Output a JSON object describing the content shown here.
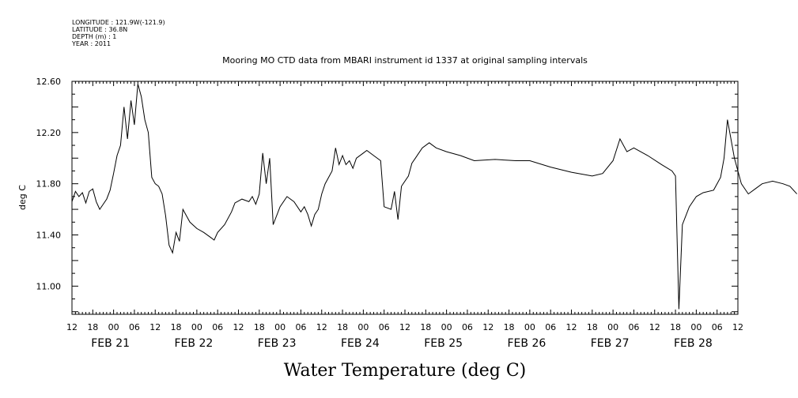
{
  "header": {
    "longitude": "LONGITUDE : 121.9W(-121.9)",
    "latitude": "LATITUDE : 36.8N",
    "depth": "DEPTH (m) : 1",
    "year": "YEAR : 2011"
  },
  "chart_data": {
    "type": "line",
    "title": "Mooring MO CTD data from MBARI instrument id 1337 at original sampling intervals",
    "ylabel": "deg C",
    "xlabel": "Water Temperature (deg C)",
    "ylim": [
      10.78,
      12.6
    ],
    "xlim_hours_note": "time axis in hours of Feb 2011",
    "y_ticks": [
      "12.60",
      "12.20",
      "11.80",
      "11.40",
      "11.00"
    ],
    "y_tick_values": [
      12.6,
      12.2,
      11.8,
      11.4,
      11.0
    ],
    "x_start": "2011-02-20T12:00",
    "x_end": "2011-02-28T12:00",
    "x_hour_labels": [
      "12",
      "18",
      "00",
      "06",
      "12",
      "18",
      "00",
      "06",
      "12",
      "18",
      "00",
      "06",
      "12",
      "18",
      "00",
      "06",
      "12",
      "18",
      "00",
      "06",
      "12",
      "18",
      "00",
      "06",
      "12",
      "18",
      "00",
      "06",
      "12",
      "18",
      "00",
      "06",
      "12"
    ],
    "day_labels": [
      "FEB 21",
      "FEB 22",
      "FEB 23",
      "FEB 24",
      "FEB 25",
      "FEB 26",
      "FEB 27",
      "FEB 28"
    ],
    "series": [
      {
        "points": [
          [
            "2011-02-20T12:00",
            11.66
          ],
          [
            "2011-02-20T13:00",
            11.74
          ],
          [
            "2011-02-20T14:00",
            11.7
          ],
          [
            "2011-02-20T15:00",
            11.73
          ],
          [
            "2011-02-20T16:00",
            11.65
          ],
          [
            "2011-02-20T17:00",
            11.74
          ],
          [
            "2011-02-20T18:00",
            11.76
          ],
          [
            "2011-02-20T19:00",
            11.66
          ],
          [
            "2011-02-20T20:00",
            11.6
          ],
          [
            "2011-02-20T21:00",
            11.64
          ],
          [
            "2011-02-20T22:00",
            11.68
          ],
          [
            "2011-02-20T23:00",
            11.75
          ],
          [
            "2011-02-21T00:00",
            11.88
          ],
          [
            "2011-02-21T01:00",
            12.02
          ],
          [
            "2011-02-21T02:00",
            12.1
          ],
          [
            "2011-02-21T03:00",
            12.4
          ],
          [
            "2011-02-21T04:00",
            12.15
          ],
          [
            "2011-02-21T05:00",
            12.45
          ],
          [
            "2011-02-21T06:00",
            12.26
          ],
          [
            "2011-02-21T07:00",
            12.58
          ],
          [
            "2011-02-21T08:00",
            12.48
          ],
          [
            "2011-02-21T09:00",
            12.3
          ],
          [
            "2011-02-21T10:00",
            12.2
          ],
          [
            "2011-02-21T11:00",
            11.85
          ],
          [
            "2011-02-21T12:00",
            11.8
          ],
          [
            "2011-02-21T13:00",
            11.78
          ],
          [
            "2011-02-21T14:00",
            11.72
          ],
          [
            "2011-02-21T15:00",
            11.55
          ],
          [
            "2011-02-21T16:00",
            11.32
          ],
          [
            "2011-02-21T17:00",
            11.26
          ],
          [
            "2011-02-21T18:00",
            11.42
          ],
          [
            "2011-02-21T19:00",
            11.35
          ],
          [
            "2011-02-21T20:00",
            11.6
          ],
          [
            "2011-02-21T21:00",
            11.55
          ],
          [
            "2011-02-21T22:00",
            11.5
          ],
          [
            "2011-02-22T00:00",
            11.45
          ],
          [
            "2011-02-22T02:00",
            11.42
          ],
          [
            "2011-02-22T04:00",
            11.38
          ],
          [
            "2011-02-22T05:00",
            11.36
          ],
          [
            "2011-02-22T06:00",
            11.42
          ],
          [
            "2011-02-22T08:00",
            11.48
          ],
          [
            "2011-02-22T10:00",
            11.58
          ],
          [
            "2011-02-22T11:00",
            11.65
          ],
          [
            "2011-02-22T13:00",
            11.68
          ],
          [
            "2011-02-22T15:00",
            11.66
          ],
          [
            "2011-02-22T16:00",
            11.7
          ],
          [
            "2011-02-22T17:00",
            11.64
          ],
          [
            "2011-02-22T18:00",
            11.72
          ],
          [
            "2011-02-22T19:00",
            12.04
          ],
          [
            "2011-02-22T20:00",
            11.8
          ],
          [
            "2011-02-22T21:00",
            12.0
          ],
          [
            "2011-02-22T22:00",
            11.48
          ],
          [
            "2011-02-23T00:00",
            11.62
          ],
          [
            "2011-02-23T02:00",
            11.7
          ],
          [
            "2011-02-23T04:00",
            11.66
          ],
          [
            "2011-02-23T06:00",
            11.58
          ],
          [
            "2011-02-23T07:00",
            11.62
          ],
          [
            "2011-02-23T08:00",
            11.56
          ],
          [
            "2011-02-23T09:00",
            11.47
          ],
          [
            "2011-02-23T10:00",
            11.56
          ],
          [
            "2011-02-23T11:00",
            11.6
          ],
          [
            "2011-02-23T12:00",
            11.72
          ],
          [
            "2011-02-23T13:00",
            11.8
          ],
          [
            "2011-02-23T14:00",
            11.85
          ],
          [
            "2011-02-23T15:00",
            11.9
          ],
          [
            "2011-02-23T16:00",
            12.08
          ],
          [
            "2011-02-23T17:00",
            11.95
          ],
          [
            "2011-02-23T18:00",
            12.02
          ],
          [
            "2011-02-23T19:00",
            11.95
          ],
          [
            "2011-02-23T20:00",
            11.98
          ],
          [
            "2011-02-23T21:00",
            11.92
          ],
          [
            "2011-02-23T22:00",
            12.0
          ],
          [
            "2011-02-24T00:00",
            12.04
          ],
          [
            "2011-02-24T01:00",
            12.06
          ],
          [
            "2011-02-24T03:00",
            12.02
          ],
          [
            "2011-02-24T05:00",
            11.98
          ],
          [
            "2011-02-24T06:00",
            11.62
          ],
          [
            "2011-02-24T08:00",
            11.6
          ],
          [
            "2011-02-24T09:00",
            11.74
          ],
          [
            "2011-02-24T10:00",
            11.52
          ],
          [
            "2011-02-24T11:00",
            11.78
          ],
          [
            "2011-02-24T13:00",
            11.86
          ],
          [
            "2011-02-24T14:00",
            11.96
          ],
          [
            "2011-02-24T15:00",
            12.0
          ],
          [
            "2011-02-24T17:00",
            12.08
          ],
          [
            "2011-02-24T19:00",
            12.12
          ],
          [
            "2011-02-24T21:00",
            12.08
          ],
          [
            "2011-02-25T00:00",
            12.05
          ],
          [
            "2011-02-25T04:00",
            12.02
          ],
          [
            "2011-02-25T08:00",
            11.98
          ],
          [
            "2011-02-25T14:00",
            11.99
          ],
          [
            "2011-02-25T20:00",
            11.98
          ],
          [
            "2011-02-26T00:00",
            11.98
          ],
          [
            "2011-02-26T06:00",
            11.93
          ],
          [
            "2011-02-26T12:00",
            11.89
          ],
          [
            "2011-02-26T18:00",
            11.86
          ],
          [
            "2011-02-26T21:00",
            11.88
          ],
          [
            "2011-02-27T00:00",
            11.98
          ],
          [
            "2011-02-27T02:00",
            12.15
          ],
          [
            "2011-02-27T04:00",
            12.05
          ],
          [
            "2011-02-27T06:00",
            12.08
          ],
          [
            "2011-02-27T10:00",
            12.02
          ],
          [
            "2011-02-27T14:00",
            11.95
          ],
          [
            "2011-02-27T17:00",
            11.9
          ],
          [
            "2011-02-27T18:00",
            11.86
          ],
          [
            "2011-02-27T19:00",
            10.82
          ],
          [
            "2011-02-27T20:00",
            11.48
          ],
          [
            "2011-02-27T21:00",
            11.55
          ],
          [
            "2011-02-27T22:00",
            11.62
          ],
          [
            "2011-02-28T00:00",
            11.7
          ],
          [
            "2011-02-28T02:00",
            11.73
          ],
          [
            "2011-02-28T05:00",
            11.75
          ],
          [
            "2011-02-28T07:00",
            11.85
          ],
          [
            "2011-02-28T08:00",
            12.0
          ],
          [
            "2011-02-28T09:00",
            12.3
          ],
          [
            "2011-02-28T10:00",
            12.15
          ],
          [
            "2011-02-28T11:00",
            12.0
          ],
          [
            "2011-02-28T13:00",
            11.8
          ],
          [
            "2011-02-28T15:00",
            11.72
          ],
          [
            "2011-02-28T17:00",
            11.76
          ],
          [
            "2011-02-28T19:00",
            11.8
          ],
          [
            "2011-02-28T22:00",
            11.82
          ],
          [
            "2011-03-01T01:00",
            11.8
          ],
          [
            "2011-03-01T03:00",
            11.78
          ],
          [
            "2011-03-01T05:00",
            11.72
          ]
        ]
      }
    ]
  }
}
